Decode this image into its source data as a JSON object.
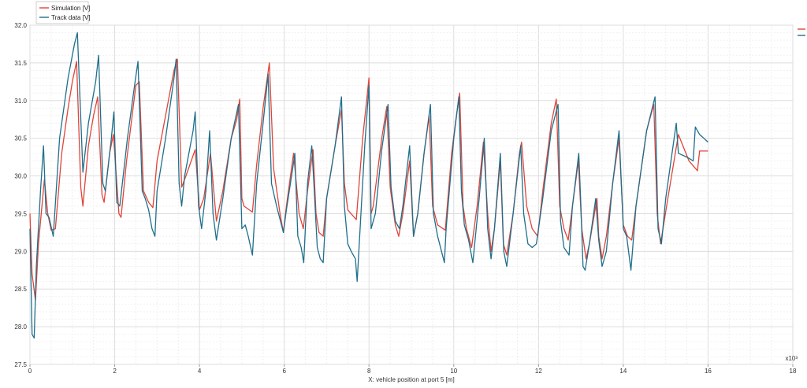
{
  "chart_data": {
    "type": "line",
    "title": "",
    "xlabel": "X: vehicle position at port 5 [m]",
    "ylabel": "",
    "x_multiplier_label": "x10³",
    "xlim": [
      0,
      18
    ],
    "ylim": [
      27.5,
      32.0
    ],
    "x_ticks": [
      "0",
      "2",
      "4",
      "6",
      "8",
      "10",
      "12",
      "14",
      "16",
      "18"
    ],
    "y_ticks": [
      "27.5",
      "28.0",
      "28.5",
      "29.0",
      "29.5",
      "30.0",
      "30.5",
      "31.0",
      "31.5",
      "32.0"
    ],
    "grid": true,
    "legend_position": "top-left",
    "series": [
      {
        "name": "Simulation [V]",
        "color": "#e0443a",
        "points": [
          [
            0.0,
            29.5
          ],
          [
            0.05,
            28.7
          ],
          [
            0.13,
            28.35
          ],
          [
            0.2,
            29.1
          ],
          [
            0.34,
            29.95
          ],
          [
            0.42,
            29.5
          ],
          [
            0.5,
            29.28
          ],
          [
            0.6,
            29.3
          ],
          [
            0.75,
            30.3
          ],
          [
            0.9,
            30.9
          ],
          [
            1.0,
            31.25
          ],
          [
            1.1,
            31.52
          ],
          [
            1.2,
            29.85
          ],
          [
            1.25,
            29.6
          ],
          [
            1.38,
            30.4
          ],
          [
            1.5,
            30.8
          ],
          [
            1.6,
            31.05
          ],
          [
            1.7,
            29.75
          ],
          [
            1.75,
            29.65
          ],
          [
            1.88,
            30.3
          ],
          [
            1.97,
            30.55
          ],
          [
            2.1,
            29.5
          ],
          [
            2.15,
            29.45
          ],
          [
            2.28,
            30.2
          ],
          [
            2.5,
            31.2
          ],
          [
            2.58,
            31.25
          ],
          [
            2.68,
            29.8
          ],
          [
            2.8,
            29.65
          ],
          [
            2.9,
            29.58
          ],
          [
            3.0,
            30.2
          ],
          [
            3.2,
            30.8
          ],
          [
            3.4,
            31.4
          ],
          [
            3.48,
            31.55
          ],
          [
            3.58,
            29.85
          ],
          [
            3.68,
            30.0
          ],
          [
            3.9,
            30.35
          ],
          [
            4.0,
            29.55
          ],
          [
            4.1,
            29.7
          ],
          [
            4.26,
            30.3
          ],
          [
            4.4,
            29.4
          ],
          [
            4.55,
            29.8
          ],
          [
            4.75,
            30.5
          ],
          [
            4.88,
            30.75
          ],
          [
            4.95,
            31.02
          ],
          [
            5.0,
            29.7
          ],
          [
            5.05,
            29.6
          ],
          [
            5.25,
            29.52
          ],
          [
            5.35,
            30.15
          ],
          [
            5.5,
            30.9
          ],
          [
            5.65,
            31.5
          ],
          [
            5.75,
            30.1
          ],
          [
            5.9,
            29.5
          ],
          [
            5.98,
            29.25
          ],
          [
            6.05,
            29.6
          ],
          [
            6.22,
            30.3
          ],
          [
            6.35,
            29.5
          ],
          [
            6.45,
            29.3
          ],
          [
            6.55,
            29.8
          ],
          [
            6.68,
            30.35
          ],
          [
            6.75,
            29.5
          ],
          [
            6.82,
            29.25
          ],
          [
            6.92,
            29.2
          ],
          [
            7.0,
            29.7
          ],
          [
            7.2,
            30.4
          ],
          [
            7.35,
            30.88
          ],
          [
            7.42,
            29.9
          ],
          [
            7.5,
            29.55
          ],
          [
            7.7,
            29.42
          ],
          [
            7.85,
            30.5
          ],
          [
            8.0,
            31.3
          ],
          [
            8.05,
            29.5
          ],
          [
            8.1,
            29.6
          ],
          [
            8.3,
            30.5
          ],
          [
            8.42,
            30.92
          ],
          [
            8.5,
            29.85
          ],
          [
            8.62,
            29.35
          ],
          [
            8.7,
            29.2
          ],
          [
            8.8,
            29.5
          ],
          [
            8.96,
            30.2
          ],
          [
            9.05,
            29.2
          ],
          [
            9.15,
            29.5
          ],
          [
            9.3,
            30.3
          ],
          [
            9.42,
            30.8
          ],
          [
            9.5,
            29.6
          ],
          [
            9.62,
            29.35
          ],
          [
            9.8,
            29.28
          ],
          [
            9.95,
            30.3
          ],
          [
            10.05,
            30.75
          ],
          [
            10.14,
            31.1
          ],
          [
            10.22,
            29.6
          ],
          [
            10.3,
            29.3
          ],
          [
            10.42,
            29.05
          ],
          [
            10.55,
            29.6
          ],
          [
            10.7,
            30.45
          ],
          [
            10.8,
            29.5
          ],
          [
            10.88,
            29.0
          ],
          [
            10.96,
            29.3
          ],
          [
            11.1,
            30.2
          ],
          [
            11.17,
            29.1
          ],
          [
            11.25,
            28.95
          ],
          [
            11.4,
            29.5
          ],
          [
            11.55,
            30.3
          ],
          [
            11.6,
            30.45
          ],
          [
            11.72,
            29.6
          ],
          [
            11.85,
            29.3
          ],
          [
            11.98,
            29.2
          ],
          [
            12.1,
            29.8
          ],
          [
            12.3,
            30.7
          ],
          [
            12.42,
            31.02
          ],
          [
            12.5,
            29.6
          ],
          [
            12.6,
            29.3
          ],
          [
            12.7,
            29.15
          ],
          [
            12.8,
            29.6
          ],
          [
            12.94,
            30.2
          ],
          [
            13.02,
            29.3
          ],
          [
            13.12,
            28.9
          ],
          [
            13.2,
            29.1
          ],
          [
            13.38,
            29.7
          ],
          [
            13.42,
            29.2
          ],
          [
            13.5,
            28.9
          ],
          [
            13.6,
            29.2
          ],
          [
            13.75,
            29.9
          ],
          [
            13.9,
            30.5
          ],
          [
            14.0,
            29.35
          ],
          [
            14.1,
            29.2
          ],
          [
            14.2,
            29.15
          ],
          [
            14.3,
            29.6
          ],
          [
            14.55,
            30.6
          ],
          [
            14.72,
            30.95
          ],
          [
            14.8,
            29.5
          ],
          [
            14.88,
            29.1
          ],
          [
            15.05,
            29.7
          ],
          [
            15.3,
            30.55
          ],
          [
            15.55,
            30.2
          ],
          [
            15.75,
            30.07
          ],
          [
            15.8,
            30.33
          ],
          [
            16.0,
            30.33
          ]
        ]
      },
      {
        "name": "Track data [V]",
        "color": "#1f6f8b",
        "points": [
          [
            0.0,
            29.3
          ],
          [
            0.05,
            27.9
          ],
          [
            0.1,
            27.85
          ],
          [
            0.15,
            28.8
          ],
          [
            0.25,
            29.8
          ],
          [
            0.32,
            30.4
          ],
          [
            0.38,
            29.5
          ],
          [
            0.45,
            29.45
          ],
          [
            0.55,
            29.2
          ],
          [
            0.7,
            30.5
          ],
          [
            0.9,
            31.3
          ],
          [
            1.05,
            31.75
          ],
          [
            1.12,
            31.9
          ],
          [
            1.25,
            30.05
          ],
          [
            1.38,
            30.7
          ],
          [
            1.55,
            31.25
          ],
          [
            1.62,
            31.6
          ],
          [
            1.72,
            29.9
          ],
          [
            1.78,
            29.8
          ],
          [
            1.92,
            30.5
          ],
          [
            1.98,
            30.85
          ],
          [
            2.05,
            29.65
          ],
          [
            2.12,
            29.6
          ],
          [
            2.3,
            30.5
          ],
          [
            2.48,
            31.25
          ],
          [
            2.55,
            31.52
          ],
          [
            2.65,
            29.8
          ],
          [
            2.72,
            29.7
          ],
          [
            2.8,
            29.55
          ],
          [
            2.88,
            29.3
          ],
          [
            2.95,
            29.2
          ],
          [
            3.0,
            29.8
          ],
          [
            3.2,
            30.5
          ],
          [
            3.4,
            31.3
          ],
          [
            3.45,
            31.55
          ],
          [
            3.52,
            29.9
          ],
          [
            3.58,
            29.6
          ],
          [
            3.65,
            30.0
          ],
          [
            3.85,
            30.6
          ],
          [
            3.9,
            30.85
          ],
          [
            3.98,
            29.6
          ],
          [
            4.05,
            29.3
          ],
          [
            4.15,
            29.8
          ],
          [
            4.24,
            30.6
          ],
          [
            4.32,
            29.5
          ],
          [
            4.4,
            29.15
          ],
          [
            4.55,
            29.7
          ],
          [
            4.75,
            30.5
          ],
          [
            4.92,
            30.95
          ],
          [
            5.0,
            29.3
          ],
          [
            5.08,
            29.35
          ],
          [
            5.15,
            29.2
          ],
          [
            5.25,
            28.95
          ],
          [
            5.35,
            29.9
          ],
          [
            5.5,
            30.7
          ],
          [
            5.62,
            31.35
          ],
          [
            5.7,
            29.9
          ],
          [
            5.82,
            29.6
          ],
          [
            5.98,
            29.25
          ],
          [
            6.05,
            29.55
          ],
          [
            6.2,
            30.1
          ],
          [
            6.25,
            30.3
          ],
          [
            6.32,
            29.2
          ],
          [
            6.4,
            29.05
          ],
          [
            6.46,
            28.85
          ],
          [
            6.55,
            29.9
          ],
          [
            6.65,
            30.4
          ],
          [
            6.7,
            29.9
          ],
          [
            6.78,
            29.05
          ],
          [
            6.85,
            28.9
          ],
          [
            6.92,
            28.85
          ],
          [
            7.0,
            29.7
          ],
          [
            7.2,
            30.4
          ],
          [
            7.35,
            31.05
          ],
          [
            7.42,
            29.6
          ],
          [
            7.5,
            29.1
          ],
          [
            7.58,
            29.0
          ],
          [
            7.68,
            28.9
          ],
          [
            7.72,
            28.6
          ],
          [
            7.75,
            28.9
          ],
          [
            7.9,
            30.4
          ],
          [
            8.0,
            31.2
          ],
          [
            8.05,
            29.3
          ],
          [
            8.15,
            29.5
          ],
          [
            8.3,
            30.35
          ],
          [
            8.45,
            30.95
          ],
          [
            8.52,
            29.85
          ],
          [
            8.62,
            29.4
          ],
          [
            8.72,
            29.3
          ],
          [
            8.8,
            29.6
          ],
          [
            8.96,
            30.4
          ],
          [
            9.05,
            29.2
          ],
          [
            9.15,
            29.5
          ],
          [
            9.3,
            30.3
          ],
          [
            9.45,
            30.95
          ],
          [
            9.52,
            29.5
          ],
          [
            9.62,
            29.2
          ],
          [
            9.78,
            28.85
          ],
          [
            9.82,
            29.3
          ],
          [
            10.0,
            30.5
          ],
          [
            10.12,
            31.05
          ],
          [
            10.18,
            29.8
          ],
          [
            10.25,
            29.35
          ],
          [
            10.35,
            29.15
          ],
          [
            10.45,
            28.85
          ],
          [
            10.6,
            29.7
          ],
          [
            10.72,
            30.5
          ],
          [
            10.8,
            29.3
          ],
          [
            10.88,
            28.9
          ],
          [
            10.96,
            29.3
          ],
          [
            11.1,
            30.3
          ],
          [
            11.18,
            29.0
          ],
          [
            11.25,
            28.8
          ],
          [
            11.4,
            29.5
          ],
          [
            11.58,
            30.4
          ],
          [
            11.65,
            29.5
          ],
          [
            11.75,
            29.1
          ],
          [
            11.85,
            29.05
          ],
          [
            11.95,
            29.1
          ],
          [
            12.1,
            29.7
          ],
          [
            12.3,
            30.6
          ],
          [
            12.46,
            30.95
          ],
          [
            12.52,
            29.4
          ],
          [
            12.6,
            29.05
          ],
          [
            12.72,
            28.95
          ],
          [
            12.8,
            29.6
          ],
          [
            12.95,
            30.3
          ],
          [
            13.0,
            29.6
          ],
          [
            13.05,
            28.8
          ],
          [
            13.1,
            28.75
          ],
          [
            13.2,
            29.1
          ],
          [
            13.35,
            29.7
          ],
          [
            13.42,
            29.15
          ],
          [
            13.5,
            28.8
          ],
          [
            13.6,
            29.0
          ],
          [
            13.75,
            29.9
          ],
          [
            13.9,
            30.6
          ],
          [
            14.0,
            29.3
          ],
          [
            14.08,
            29.2
          ],
          [
            14.18,
            28.75
          ],
          [
            14.3,
            29.6
          ],
          [
            14.55,
            30.6
          ],
          [
            14.75,
            31.05
          ],
          [
            14.82,
            29.3
          ],
          [
            14.9,
            29.1
          ],
          [
            15.0,
            29.7
          ],
          [
            15.25,
            30.7
          ],
          [
            15.3,
            30.3
          ],
          [
            15.5,
            30.25
          ],
          [
            15.65,
            30.2
          ],
          [
            15.7,
            30.65
          ],
          [
            15.8,
            30.55
          ],
          [
            15.9,
            30.5
          ],
          [
            16.0,
            30.45
          ]
        ]
      }
    ]
  }
}
